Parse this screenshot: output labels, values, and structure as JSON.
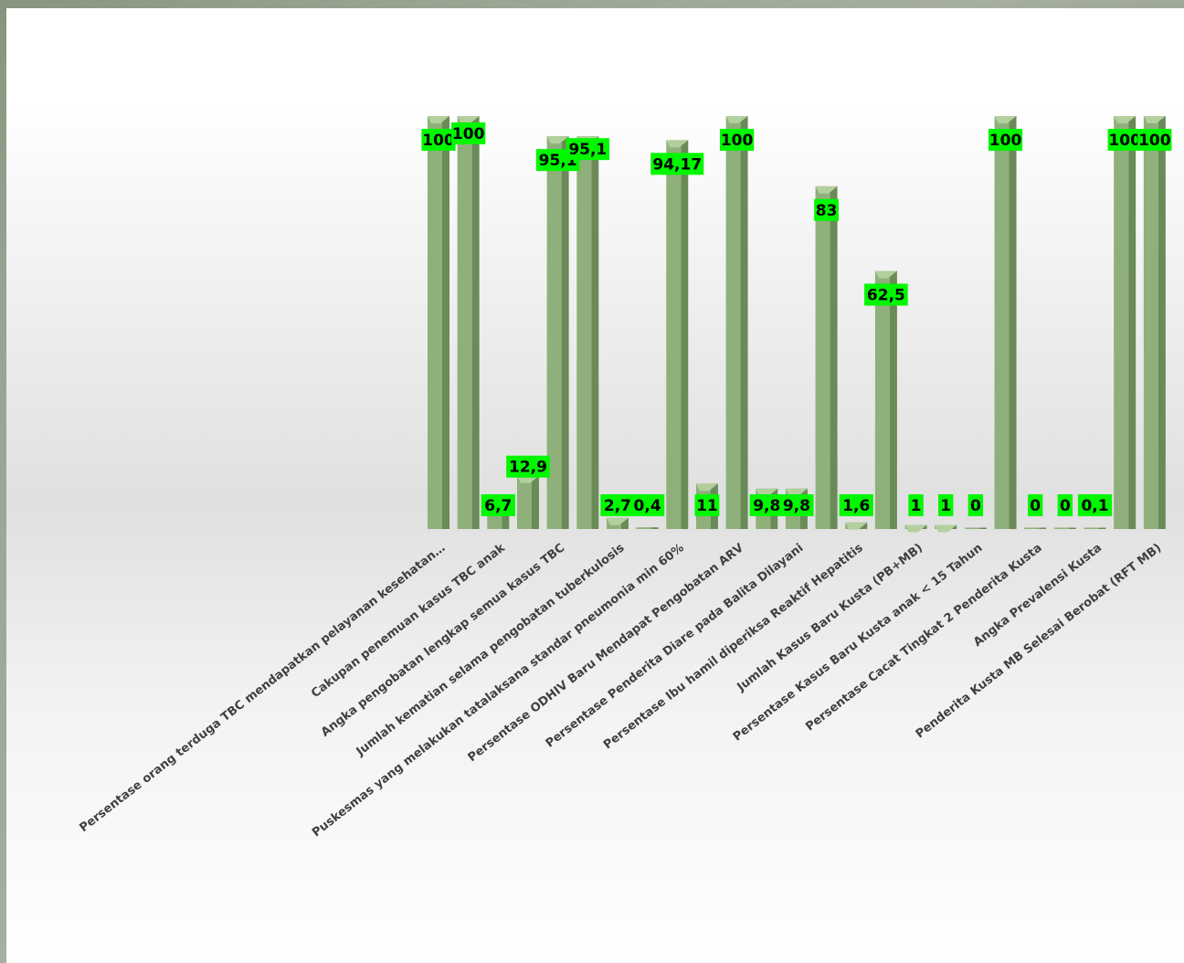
{
  "chart_data": {
    "type": "bar",
    "title": "",
    "xlabel": "",
    "ylabel": "",
    "ylim": [
      0,
      100
    ],
    "grid": false,
    "legend": "none",
    "colors": {
      "bar_front": "#8fb07a",
      "bar_side": "#6a8a57",
      "bar_top": "#b3cf9d",
      "label_bg": "#00f700"
    },
    "categories": [
      "Persentase orang terduga TBC mendapatkan pelayanan kesehatan…",
      "",
      "Cakupan penemuan kasus TBC anak",
      "",
      "Angka pengobatan lengkap semua kasus TBC",
      "",
      "Jumlah kematian selama pengobatan tuberkulosis",
      "",
      "Puskesmas yang melakukan tatalaksana standar pneumonia min 60%",
      "",
      "Persentase ODHIV Baru Mendapat Pengobatan ARV",
      "",
      "Persentase Penderita Diare pada Balita Dilayani",
      "",
      "Persentase Ibu hamil diperiksa Reaktif Hepatitis",
      "",
      "Jumlah Kasus Baru Kusta (PB+MB)",
      "",
      "Persentase Kasus Baru Kusta anak < 15 Tahun",
      "",
      "Persentase Cacat Tingkat 2 Penderita Kusta",
      "",
      "Angka Prevalensi Kusta",
      "",
      "Penderita Kusta MB Selesai Berobat (RFT MB)"
    ],
    "values": [
      100,
      100,
      6.7,
      12.9,
      95.1,
      95.1,
      2.7,
      0.4,
      94.17,
      11,
      100,
      9.8,
      9.8,
      83,
      1.6,
      62.5,
      1,
      1,
      0,
      100,
      0,
      0,
      0.1,
      100,
      100
    ],
    "labels": [
      "100",
      "100",
      "6,7",
      "12,9",
      "95,1",
      "95,1",
      "2,7",
      "0,4",
      "94,17",
      "11",
      "100",
      "9,8",
      "9,8",
      "83",
      "1,6",
      "62,5",
      "1",
      "1",
      "0",
      "100",
      "0",
      "0",
      "0,1",
      "100",
      "100"
    ]
  }
}
